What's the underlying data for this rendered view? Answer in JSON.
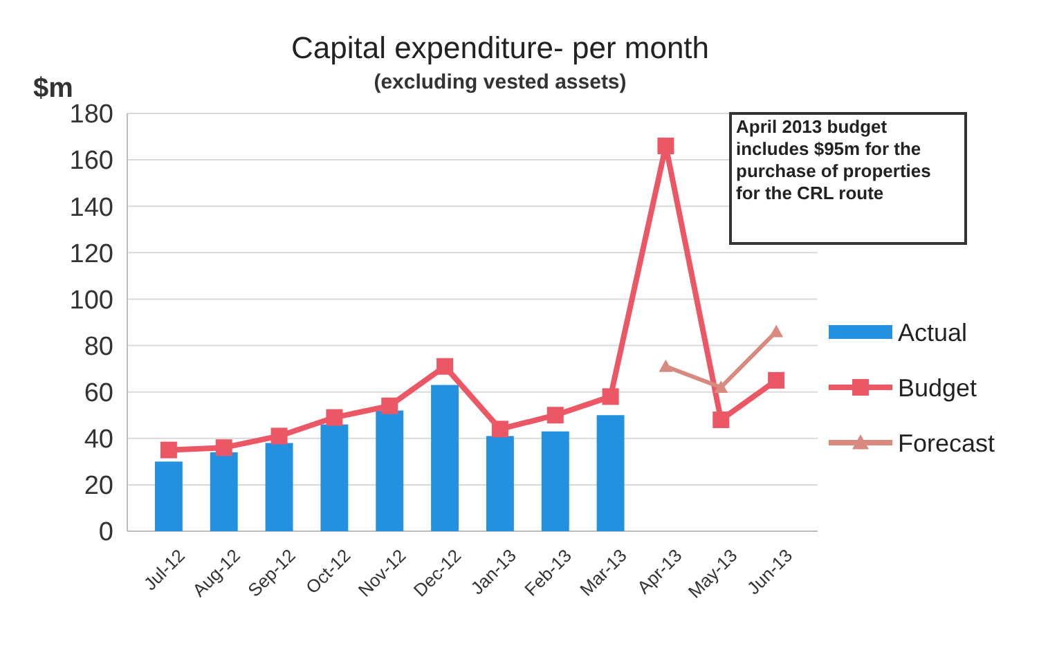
{
  "chart_data": {
    "type": "bar",
    "title": "Capital expenditure- per month",
    "subtitle": "(excluding vested assets)",
    "ylabel": "$m",
    "categories": [
      "Jul-12",
      "Aug-12",
      "Sep-12",
      "Oct-12",
      "Nov-12",
      "Dec-12",
      "Jan-13",
      "Feb-13",
      "Mar-13",
      "Apr-13",
      "May-13",
      "Jun-13"
    ],
    "series": [
      {
        "name": "Actual",
        "color": "#2390e0",
        "values": [
          30,
          34,
          38,
          46,
          52,
          63,
          41,
          43,
          50,
          null,
          null,
          null
        ]
      },
      {
        "name": "Budget",
        "type": "line",
        "color": "#ec5766",
        "marker": "square",
        "values": [
          35,
          36,
          41,
          49,
          54,
          71,
          44,
          50,
          58,
          166,
          48,
          65
        ]
      },
      {
        "name": "Forecast",
        "type": "line",
        "color": "#d98a80",
        "marker": "triangle",
        "values": [
          null,
          null,
          null,
          null,
          null,
          null,
          null,
          null,
          null,
          71,
          62,
          86
        ]
      }
    ],
    "ylim": [
      0,
      180
    ],
    "yticks": [
      0,
      20,
      40,
      60,
      80,
      100,
      120,
      140,
      160,
      180
    ],
    "grid": "y",
    "legend": "right",
    "annotations": [
      "April 2013  budget includes $95m  for the purchase of properties for the CRL route"
    ]
  }
}
